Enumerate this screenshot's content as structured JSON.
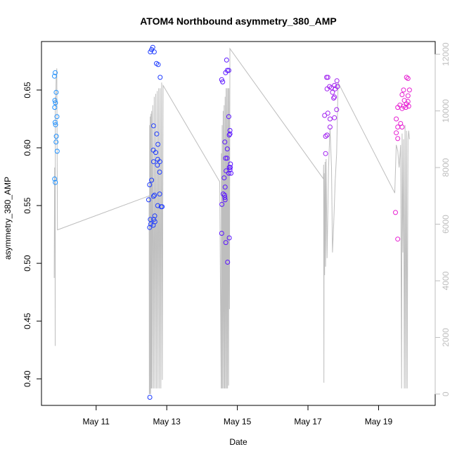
{
  "chart_data": {
    "type": "scatter",
    "title": "ATOM4 Northbound asymmetry_380_AMP",
    "xlabel": "Date",
    "ylabel": "asymmetry_380_AMP",
    "xlim": [
      "2013-05-09T10:50",
      "2013-05-20T14:30"
    ],
    "ylim": [
      0.377,
      0.692
    ],
    "y2lim": [
      -400,
      12450
    ],
    "x_ticks": [
      "May 11",
      "May 13",
      "May 15",
      "May 17",
      "May 19"
    ],
    "x_tick_values": [
      "2013-05-11",
      "2013-05-13",
      "2013-05-15",
      "2013-05-17",
      "2013-05-19"
    ],
    "y_ticks": [
      0.4,
      0.45,
      0.5,
      0.55,
      0.6,
      0.65
    ],
    "y_tick_labels": [
      "0.40",
      "0.45",
      "0.50",
      "0.55",
      "0.60",
      "0.65"
    ],
    "y2_ticks": [
      0,
      2000,
      4000,
      6000,
      8000,
      10000,
      12000
    ],
    "y2_tick_labels": [
      "0",
      "2000",
      "4000",
      "6000",
      "8000",
      "10000",
      "12000"
    ],
    "grid": false,
    "legend": "none",
    "colors": {
      "day1": "#1e90ff",
      "day2": "#1e3cff",
      "day3": "#5a14ff",
      "day4": "#a020f0",
      "day5": "#e61ed2",
      "secondary_line": "#bebebe"
    },
    "series": [
      {
        "color": "#1e90ff",
        "points": [
          [
            "2013-05-09T19:40",
            0.662
          ],
          [
            "2013-05-09T20:10",
            0.665
          ],
          [
            "2013-05-09T19:55",
            0.641
          ],
          [
            "2013-05-09T19:50",
            0.635
          ],
          [
            "2013-05-09T20:20",
            0.639
          ],
          [
            "2013-05-09T20:05",
            0.622
          ],
          [
            "2013-05-09T20:25",
            0.62
          ],
          [
            "2013-05-09T21:20",
            0.627
          ],
          [
            "2013-05-09T20:50",
            0.648
          ],
          [
            "2013-05-09T20:55",
            0.61
          ],
          [
            "2013-05-09T20:45",
            0.605
          ],
          [
            "2013-05-09T21:30",
            0.597
          ],
          [
            "2013-05-09T19:45",
            0.573
          ],
          [
            "2013-05-09T20:15",
            0.57
          ]
        ]
      },
      {
        "color": "#1e3cff",
        "points": [
          [
            "2013-05-12T12:50",
            0.683
          ],
          [
            "2013-05-12T13:40",
            0.685
          ],
          [
            "2013-05-12T14:30",
            0.687
          ],
          [
            "2013-05-12T15:30",
            0.683
          ],
          [
            "2013-05-12T17:00",
            0.673
          ],
          [
            "2013-05-12T18:10",
            0.672
          ],
          [
            "2013-05-12T19:30",
            0.661
          ],
          [
            "2013-05-12T15:00",
            0.619
          ],
          [
            "2013-05-12T17:10",
            0.612
          ],
          [
            "2013-05-12T18:00",
            0.603
          ],
          [
            "2013-05-12T14:50",
            0.598
          ],
          [
            "2013-05-12T16:30",
            0.596
          ],
          [
            "2013-05-12T17:50",
            0.59
          ],
          [
            "2013-05-12T15:00",
            0.588
          ],
          [
            "2013-05-12T19:20",
            0.588
          ],
          [
            "2013-05-12T17:40",
            0.585
          ],
          [
            "2013-05-12T19:10",
            0.579
          ],
          [
            "2013-05-12T13:40",
            0.572
          ],
          [
            "2013-05-12T12:20",
            0.568
          ],
          [
            "2013-05-12T15:40",
            0.559
          ],
          [
            "2013-05-12T15:00",
            0.558
          ],
          [
            "2013-05-12T19:10",
            0.56
          ],
          [
            "2013-05-12T11:40",
            0.555
          ],
          [
            "2013-05-12T17:50",
            0.55
          ],
          [
            "2013-05-12T20:10",
            0.549
          ],
          [
            "2013-05-12T20:50",
            0.549
          ],
          [
            "2013-05-12T15:50",
            0.541
          ],
          [
            "2013-05-12T12:50",
            0.538
          ],
          [
            "2013-05-12T15:10",
            0.538
          ],
          [
            "2013-05-12T16:00",
            0.536
          ],
          [
            "2013-05-12T13:10",
            0.534
          ],
          [
            "2013-05-12T14:50",
            0.533
          ],
          [
            "2013-05-12T12:20",
            0.531
          ],
          [
            "2013-05-12T12:30",
            0.384
          ]
        ]
      },
      {
        "color": "#5a14ff",
        "points": [
          [
            "2013-05-14T16:40",
            0.676
          ],
          [
            "2013-05-14T17:10",
            0.667
          ],
          [
            "2013-05-14T18:10",
            0.667
          ],
          [
            "2013-05-14T16:00",
            0.665
          ],
          [
            "2013-05-14T13:20",
            0.659
          ],
          [
            "2013-05-14T14:00",
            0.657
          ],
          [
            "2013-05-14T18:10",
            0.627
          ],
          [
            "2013-05-14T19:00",
            0.615
          ],
          [
            "2013-05-14T19:00",
            0.612
          ],
          [
            "2013-05-14T18:30",
            0.611
          ],
          [
            "2013-05-14T15:30",
            0.605
          ],
          [
            "2013-05-14T17:10",
            0.599
          ],
          [
            "2013-05-14T17:00",
            0.591
          ],
          [
            "2013-05-14T16:00",
            0.591
          ],
          [
            "2013-05-14T19:20",
            0.586
          ],
          [
            "2013-05-14T19:10",
            0.583
          ],
          [
            "2013-05-14T18:30",
            0.583
          ],
          [
            "2013-05-14T19:00",
            0.581
          ],
          [
            "2013-05-14T16:20",
            0.58
          ],
          [
            "2013-05-14T18:10",
            0.578
          ],
          [
            "2013-05-14T19:40",
            0.578
          ],
          [
            "2013-05-14T15:00",
            0.574
          ],
          [
            "2013-05-14T15:40",
            0.566
          ],
          [
            "2013-05-14T15:20",
            0.559
          ],
          [
            "2013-05-14T14:20",
            0.56
          ],
          [
            "2013-05-14T15:40",
            0.555
          ],
          [
            "2013-05-14T13:30",
            0.551
          ],
          [
            "2013-05-14T15:30",
            0.557
          ],
          [
            "2013-05-14T13:20",
            0.526
          ],
          [
            "2013-05-14T18:30",
            0.522
          ],
          [
            "2013-05-14T16:10",
            0.518
          ],
          [
            "2013-05-14T17:20",
            0.501
          ]
        ]
      },
      {
        "color": "#a020f0",
        "points": [
          [
            "2013-05-17T12:40",
            0.661
          ],
          [
            "2013-05-17T13:30",
            0.661
          ],
          [
            "2013-05-17T14:40",
            0.653
          ],
          [
            "2013-05-17T16:00",
            0.652
          ],
          [
            "2013-05-17T18:00",
            0.654
          ],
          [
            "2013-05-17T18:30",
            0.651
          ],
          [
            "2013-05-17T19:40",
            0.658
          ],
          [
            "2013-05-17T20:00",
            0.653
          ],
          [
            "2013-05-17T13:00",
            0.651
          ],
          [
            "2013-05-17T16:40",
            0.648
          ],
          [
            "2013-05-17T17:30",
            0.643
          ],
          [
            "2013-05-17T18:00",
            0.644
          ],
          [
            "2013-05-17T19:30",
            0.633
          ],
          [
            "2013-05-17T13:30",
            0.63
          ],
          [
            "2013-05-17T15:00",
            0.625
          ],
          [
            "2013-05-17T18:00",
            0.626
          ],
          [
            "2013-05-17T11:20",
            0.628
          ],
          [
            "2013-05-17T15:00",
            0.618
          ],
          [
            "2013-05-17T12:00",
            0.61
          ],
          [
            "2013-05-17T13:00",
            0.611
          ],
          [
            "2013-05-17T12:00",
            0.595
          ]
        ]
      },
      {
        "color": "#e61ed2",
        "points": [
          [
            "2013-05-19T19:00",
            0.661
          ],
          [
            "2013-05-19T20:00",
            0.66
          ],
          [
            "2013-05-19T17:00",
            0.65
          ],
          [
            "2013-05-19T21:00",
            0.65
          ],
          [
            "2013-05-19T20:00",
            0.645
          ],
          [
            "2013-05-19T16:00",
            0.646
          ],
          [
            "2013-05-19T17:30",
            0.641
          ],
          [
            "2013-05-19T14:30",
            0.637
          ],
          [
            "2013-05-19T17:00",
            0.636
          ],
          [
            "2013-05-19T19:00",
            0.638
          ],
          [
            "2013-05-19T20:30",
            0.636
          ],
          [
            "2013-05-19T18:30",
            0.635
          ],
          [
            "2013-05-19T20:00",
            0.64
          ],
          [
            "2013-05-19T13:00",
            0.635
          ],
          [
            "2013-05-19T16:00",
            0.634
          ],
          [
            "2013-05-19T12:00",
            0.625
          ],
          [
            "2013-05-19T13:00",
            0.618
          ],
          [
            "2013-05-19T16:00",
            0.618
          ],
          [
            "2013-05-19T15:00",
            0.621
          ],
          [
            "2013-05-19T12:00",
            0.613
          ],
          [
            "2013-05-19T13:00",
            0.608
          ],
          [
            "2013-05-19T11:30",
            0.544
          ],
          [
            "2013-05-19T13:00",
            0.521
          ]
        ]
      }
    ],
    "secondary_line": {
      "color": "#bebebe",
      "axis": "right",
      "points": [
        [
          "2013-05-09T19:30",
          4100
        ],
        [
          "2013-05-09T19:45",
          8000
        ],
        [
          "2013-05-09T20:00",
          7900
        ],
        [
          "2013-05-09T20:10",
          1700
        ],
        [
          "2013-05-09T20:15",
          10500
        ],
        [
          "2013-05-09T20:30",
          10200
        ],
        [
          "2013-05-09T20:50",
          11200
        ],
        [
          "2013-05-09T21:15",
          11500
        ],
        [
          "2013-05-09T21:40",
          5800
        ],
        [
          "2013-05-12T12:00",
          7000
        ],
        [
          "2013-05-12T12:10",
          0
        ],
        [
          "2013-05-12T12:20",
          9500
        ],
        [
          "2013-05-12T12:30",
          0
        ],
        [
          "2013-05-12T12:45",
          9800
        ],
        [
          "2013-05-12T13:00",
          0
        ],
        [
          "2013-05-12T13:15",
          9900
        ],
        [
          "2013-05-12T13:30",
          200
        ],
        [
          "2013-05-12T13:45",
          10000
        ],
        [
          "2013-05-12T14:00",
          200
        ],
        [
          "2013-05-12T14:30",
          10200
        ],
        [
          "2013-05-12T15:00",
          200
        ],
        [
          "2013-05-12T15:30",
          10500
        ],
        [
          "2013-05-12T16:00",
          200
        ],
        [
          "2013-05-12T16:30",
          10600
        ],
        [
          "2013-05-12T17:00",
          200
        ],
        [
          "2013-05-12T17:30",
          10700
        ],
        [
          "2013-05-12T18:00",
          200
        ],
        [
          "2013-05-12T18:30",
          10800
        ],
        [
          "2013-05-12T19:00",
          200
        ],
        [
          "2013-05-12T19:30",
          10800
        ],
        [
          "2013-05-12T20:00",
          200
        ],
        [
          "2013-05-12T20:30",
          11000
        ],
        [
          "2013-05-12T21:00",
          500
        ],
        [
          "2013-05-12T21:30",
          10900
        ],
        [
          "2013-05-14T12:00",
          7500
        ],
        [
          "2013-05-14T13:00",
          200
        ],
        [
          "2013-05-14T13:10",
          8500
        ],
        [
          "2013-05-14T13:20",
          200
        ],
        [
          "2013-05-14T13:40",
          9500
        ],
        [
          "2013-05-14T14:00",
          200
        ],
        [
          "2013-05-14T14:20",
          10000
        ],
        [
          "2013-05-14T14:40",
          200
        ],
        [
          "2013-05-14T15:00",
          10200
        ],
        [
          "2013-05-14T15:20",
          200
        ],
        [
          "2013-05-14T15:40",
          10500
        ],
        [
          "2013-05-14T16:00",
          200
        ],
        [
          "2013-05-14T16:20",
          10800
        ],
        [
          "2013-05-14T16:40",
          200
        ],
        [
          "2013-05-14T17:00",
          10800
        ],
        [
          "2013-05-14T17:20",
          200
        ],
        [
          "2013-05-14T17:40",
          10800
        ],
        [
          "2013-05-14T18:00",
          300
        ],
        [
          "2013-05-14T18:20",
          10800
        ],
        [
          "2013-05-14T18:40",
          3000
        ],
        [
          "2013-05-14T18:55",
          12200
        ],
        [
          "2013-05-17T10:30",
          7600
        ],
        [
          "2013-05-17T10:40",
          8100
        ],
        [
          "2013-05-17T10:50",
          400
        ],
        [
          "2013-05-17T11:00",
          7800
        ],
        [
          "2013-05-17T11:20",
          4200
        ],
        [
          "2013-05-17T11:40",
          8200
        ],
        [
          "2013-05-17T12:00",
          4500
        ],
        [
          "2013-05-17T12:20",
          8300
        ],
        [
          "2013-05-17T13:00",
          4800
        ],
        [
          "2013-05-17T14:00",
          8000
        ],
        [
          "2013-05-17T15:00",
          9400
        ],
        [
          "2013-05-17T16:00",
          8000
        ],
        [
          "2013-05-17T16:40",
          5000
        ],
        [
          "2013-05-17T17:30",
          6000
        ],
        [
          "2013-05-17T18:30",
          7500
        ],
        [
          "2013-05-17T19:30",
          8500
        ],
        [
          "2013-05-17T20:30",
          11000
        ],
        [
          "2013-05-19T11:00",
          7100
        ],
        [
          "2013-05-19T12:00",
          8800
        ],
        [
          "2013-05-19T13:00",
          8600
        ],
        [
          "2013-05-19T14:00",
          8000
        ],
        [
          "2013-05-19T15:00",
          8800
        ],
        [
          "2013-05-19T15:40",
          200
        ],
        [
          "2013-05-19T16:00",
          9200
        ],
        [
          "2013-05-19T16:30",
          5000
        ],
        [
          "2013-05-19T17:00",
          9000
        ],
        [
          "2013-05-19T17:30",
          200
        ],
        [
          "2013-05-19T18:00",
          9500
        ],
        [
          "2013-05-19T18:30",
          200
        ],
        [
          "2013-05-19T19:00",
          9300
        ],
        [
          "2013-05-19T19:30",
          200
        ],
        [
          "2013-05-19T20:00",
          9000
        ],
        [
          "2013-05-19T20:30",
          9300
        ],
        [
          "2013-05-19T21:00",
          9000
        ]
      ]
    }
  }
}
